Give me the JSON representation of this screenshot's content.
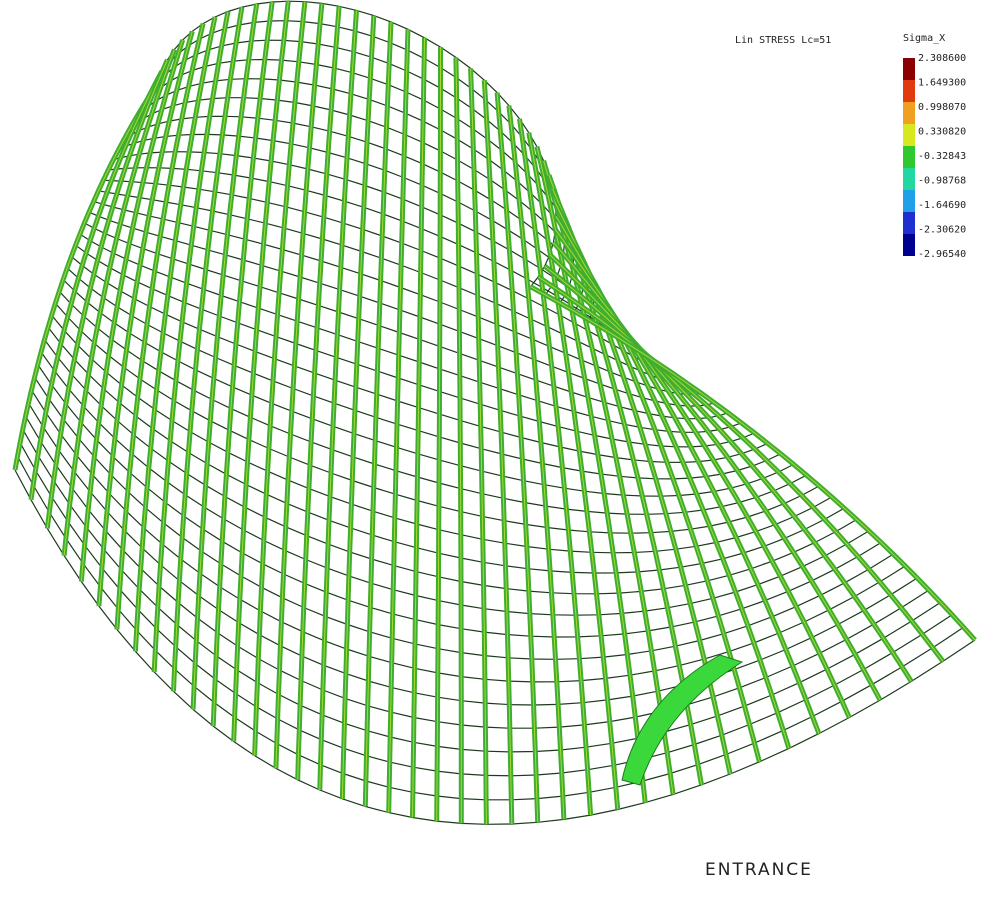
{
  "header": {
    "title": "Lin STRESS Lc=51"
  },
  "legend": {
    "title": "Sigma_X",
    "labels": [
      "2.308600",
      "1.649300",
      "0.998070",
      "0.330820",
      "-0.32843",
      "-0.98768",
      "-1.64690",
      "-2.30620",
      "-2.96540"
    ]
  },
  "annotation": "ENTRANCE"
}
